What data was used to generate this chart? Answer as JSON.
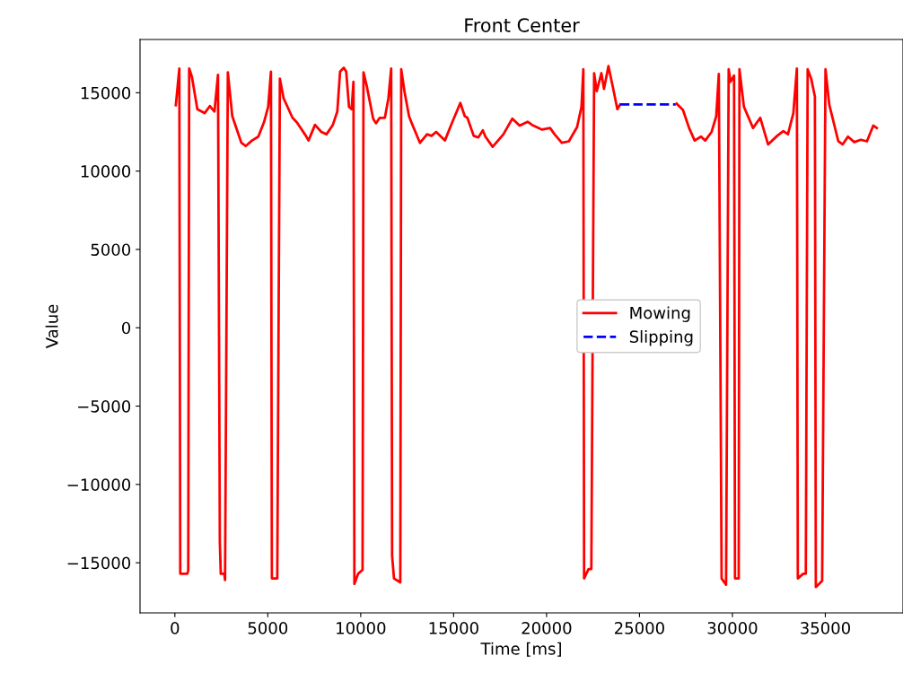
{
  "chart_data": {
    "type": "line",
    "title": "Front Center",
    "xlabel": "Time [ms]",
    "ylabel": "Value",
    "xlim": [
      -1875,
      39180
    ],
    "ylim": [
      -18200,
      18400
    ],
    "xticks": [
      0,
      5000,
      10000,
      15000,
      20000,
      25000,
      30000,
      35000
    ],
    "yticks": [
      {
        "value": -15000,
        "label": "−15000"
      },
      {
        "value": -10000,
        "label": "−10000"
      },
      {
        "value": -5000,
        "label": "−5000"
      },
      0,
      5000,
      10000,
      15000
    ],
    "grid": false,
    "legend": "right",
    "marker": "none",
    "series": [
      {
        "name": "Mowing",
        "color": "#ff0000",
        "line_style": "solid",
        "x": [
          50,
          240,
          290,
          670,
          720,
          770,
          920,
          1210,
          1600,
          1880,
          2130,
          2320,
          2420,
          2470,
          2660,
          2700,
          2850,
          3090,
          3580,
          3810,
          4150,
          4490,
          4790,
          5020,
          5170,
          5220,
          5510,
          5650,
          5850,
          6330,
          6570,
          7050,
          7190,
          7540,
          7880,
          8160,
          8500,
          8740,
          8890,
          9090,
          9220,
          9370,
          9510,
          9610,
          9660,
          9860,
          10100,
          10150,
          10330,
          10670,
          10820,
          11020,
          11300,
          11490,
          11640,
          11690,
          11790,
          12130,
          12180,
          12360,
          12600,
          12750,
          13190,
          13570,
          13810,
          14060,
          14530,
          14920,
          15360,
          15600,
          15740,
          16080,
          16330,
          16570,
          16710,
          17100,
          17680,
          18160,
          18550,
          18980,
          19220,
          19760,
          20190,
          20430,
          20820,
          21200,
          21640,
          21880,
          21980,
          22020,
          22260,
          22410,
          22560,
          22700,
          22950,
          23090,
          23330,
          23570,
          23810,
          23960,
          25400,
          26950,
          27000,
          27340,
          27670,
          27970,
          28310,
          28540,
          28880,
          29130,
          29270,
          29420,
          29660,
          29800,
          29900,
          30090,
          30140,
          30340,
          30380,
          30620,
          31110,
          31500,
          31920,
          32410,
          32740,
          32990,
          33280,
          33470,
          33520,
          33810,
          33950,
          34050,
          34240,
          34440,
          34490,
          34830,
          35010,
          35210,
          35700,
          35930,
          36220,
          36560,
          36910,
          37240,
          37580,
          37770
        ],
        "values": [
          14200,
          16550,
          -15700,
          -15700,
          -15500,
          16550,
          16000,
          13950,
          13700,
          14150,
          13800,
          16150,
          -13700,
          -15700,
          -15700,
          -16100,
          16300,
          13500,
          11800,
          11600,
          11950,
          12200,
          13100,
          14100,
          16350,
          -16000,
          -16000,
          15900,
          14650,
          13400,
          13100,
          12250,
          11950,
          12950,
          12500,
          12350,
          12950,
          13800,
          16350,
          16600,
          16350,
          14100,
          13950,
          15700,
          -16350,
          -15700,
          -15450,
          16300,
          15400,
          13350,
          13050,
          13400,
          13400,
          14650,
          16550,
          -14550,
          -16000,
          -16250,
          16500,
          15050,
          13500,
          13050,
          11800,
          12350,
          12250,
          12500,
          11950,
          13100,
          14350,
          13500,
          13400,
          12250,
          12150,
          12600,
          12200,
          11550,
          12350,
          13350,
          12900,
          13150,
          12950,
          12650,
          12750,
          12350,
          11800,
          11900,
          12800,
          14100,
          16500,
          -16000,
          -15400,
          -15400,
          16250,
          15100,
          16250,
          15250,
          16700,
          15350,
          13950,
          14250,
          null,
          null,
          14300,
          13900,
          12750,
          11950,
          12200,
          11950,
          12500,
          13500,
          16200,
          -16000,
          -16400,
          16500,
          15700,
          16100,
          -16000,
          -16000,
          16500,
          14100,
          12750,
          13400,
          11700,
          12250,
          12550,
          12350,
          13700,
          16550,
          -16000,
          -15700,
          -15700,
          16500,
          15900,
          14750,
          -16550,
          -16150,
          16500,
          14250,
          11900,
          11700,
          12200,
          11850,
          12000,
          11900,
          12900,
          12750
        ]
      },
      {
        "name": "Slipping",
        "color": "#0000ff",
        "line_style": "dashed",
        "x": [
          23960,
          25400,
          26950
        ],
        "values": [
          14250,
          14250,
          14250
        ]
      }
    ]
  }
}
